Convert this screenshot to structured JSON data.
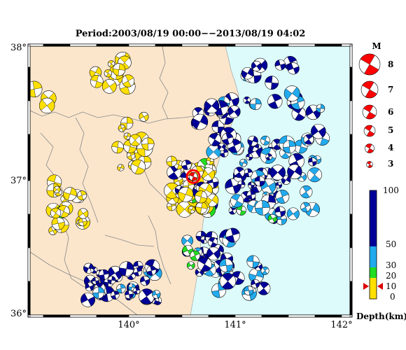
{
  "title": "Period:2003/08/19 00:00−−2013/08/19 04:02",
  "map": {
    "lon_range": [
      139.1,
      142.1
    ],
    "lat_range": [
      36.0,
      38.0
    ],
    "lon_ticks": [
      "140°",
      "141°",
      "142°"
    ],
    "lat_ticks": [
      "38°",
      "37°",
      "36°"
    ],
    "land_color": "#fbe6cc",
    "sea_color": "#ddfbfb",
    "mainshock": {
      "lon": 140.63,
      "lat": 37.03,
      "color": "#ff0000"
    }
  },
  "magnitude_legend": {
    "title": "M",
    "entries": [
      "8",
      "7",
      "6",
      "5",
      "4",
      "3"
    ],
    "color": "#ff0000"
  },
  "depth_legend": {
    "label": "Depth(km)",
    "ticks": [
      "100",
      "50",
      "30",
      "20",
      "10",
      "0"
    ],
    "bands": [
      {
        "range": [
          0,
          10
        ],
        "color": "#ffe000"
      },
      {
        "range": [
          10,
          20
        ],
        "color": "#ffe000"
      },
      {
        "range": [
          20,
          30
        ],
        "color": "#22dd22"
      },
      {
        "range": [
          30,
          50
        ],
        "color": "#22aaee"
      },
      {
        "range": [
          50,
          100
        ],
        "color": "#000099"
      }
    ],
    "marker_depth": 10,
    "marker_color": "#dd0000"
  }
}
